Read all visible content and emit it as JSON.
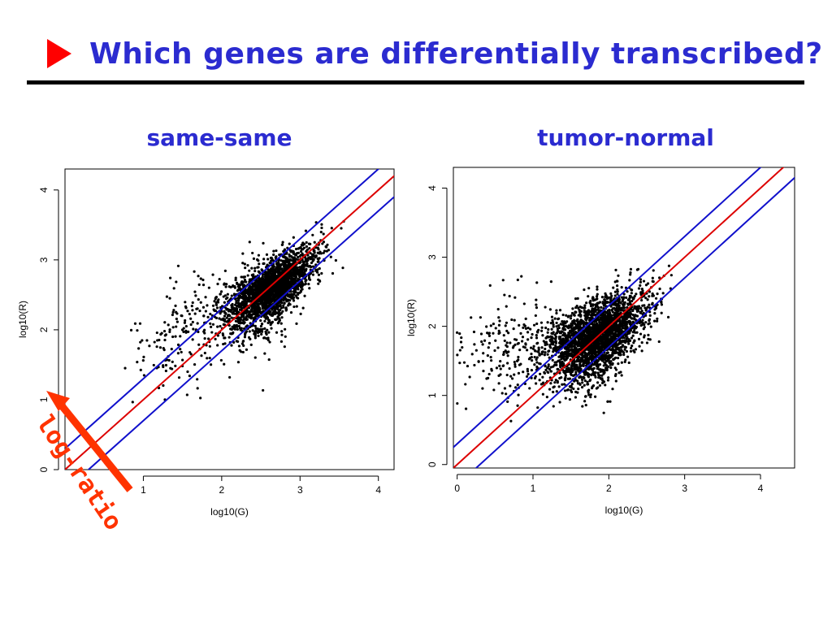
{
  "slide": {
    "title": "Which genes are differentially transcribed?"
  },
  "annotation": {
    "label": "log-ratio",
    "color": "#ff3300"
  },
  "colors": {
    "bullet": "#ff0000",
    "title_text": "#2b2bd0",
    "points": "#000000",
    "center_line": "#dd0000",
    "band_lines": "#1010cc"
  },
  "chart_data": [
    {
      "type": "scatter",
      "title": "same-same",
      "xlabel": "log10(G)",
      "ylabel": "log10(R)",
      "xlim": [
        0,
        4.2
      ],
      "ylim": [
        0,
        4.3
      ],
      "xticks": [
        1,
        2,
        3,
        4
      ],
      "yticks": [
        0,
        1,
        2,
        3,
        4
      ],
      "lines": [
        {
          "role": "center",
          "slope": 1,
          "intercept": 0
        },
        {
          "role": "upper",
          "slope": 1,
          "intercept": 0.3
        },
        {
          "role": "lower",
          "slope": 1,
          "intercept": -0.3
        }
      ],
      "cloud": {
        "center": [
          2.65,
          2.6
        ],
        "spread_along": 0.35,
        "spread_across": 0.14,
        "n": 2600,
        "tail_to": [
          1.2,
          1.7
        ]
      }
    },
    {
      "type": "scatter",
      "title": "tumor-normal",
      "xlabel": "log10(G)",
      "ylabel": "log10(R)",
      "xlim": [
        -0.05,
        4.45
      ],
      "ylim": [
        -0.05,
        4.3
      ],
      "xticks": [
        0,
        1,
        2,
        3,
        4
      ],
      "yticks": [
        0,
        1,
        2,
        3,
        4
      ],
      "lines": [
        {
          "role": "center",
          "slope": 1,
          "intercept": 0
        },
        {
          "role": "upper",
          "slope": 1,
          "intercept": 0.3
        },
        {
          "role": "lower",
          "slope": 1,
          "intercept": -0.3
        }
      ],
      "cloud": {
        "center": [
          1.85,
          1.85
        ],
        "spread_along": 0.4,
        "spread_across": 0.2,
        "n": 2800,
        "tail_to": [
          0.3,
          1.6
        ]
      }
    }
  ]
}
